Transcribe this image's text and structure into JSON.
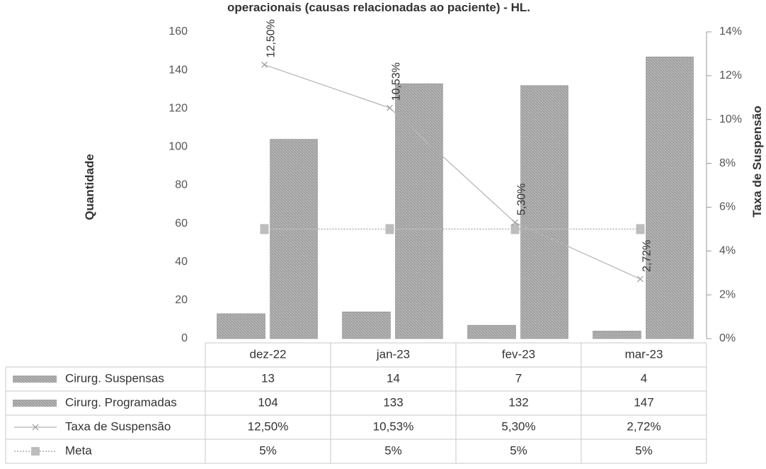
{
  "chart_data": {
    "type": "bar",
    "title": "operacionais (causas relacionadas ao paciente) - HL.",
    "categories": [
      "dez-22",
      "jan-23",
      "fev-23",
      "mar-23"
    ],
    "ylabel": "Quantidade",
    "y2label": "Taxa de Suspensão",
    "ylim": [
      0,
      160
    ],
    "y2lim": [
      0,
      14
    ],
    "yticks": [
      "0",
      "20",
      "40",
      "60",
      "80",
      "100",
      "120",
      "140",
      "160"
    ],
    "y2ticks": [
      "0%",
      "2%",
      "4%",
      "6%",
      "8%",
      "10%",
      "12%",
      "14%"
    ],
    "grid": false,
    "series": [
      {
        "name": "Cirurg. Suspensas",
        "kind": "bar",
        "axis": "left",
        "values": [
          13,
          14,
          7,
          4
        ],
        "table": [
          "13",
          "14",
          "7",
          "4"
        ],
        "color": "#a9a9a9"
      },
      {
        "name": "Cirurg. Programadas",
        "kind": "bar",
        "axis": "left",
        "values": [
          104,
          133,
          132,
          147
        ],
        "table": [
          "104",
          "133",
          "132",
          "147"
        ],
        "color": "#a9a9a9"
      },
      {
        "name": "Taxa de Suspensão",
        "kind": "line",
        "axis": "right",
        "values": [
          12.5,
          10.53,
          5.3,
          2.72
        ],
        "table": [
          "12,50%",
          "10,53%",
          "5,30%",
          "2,72%"
        ],
        "labels": [
          "12,50%",
          "10,53%",
          "5,30%",
          "2,72%"
        ],
        "color": "#b3b3b3"
      },
      {
        "name": "Meta",
        "kind": "line",
        "axis": "right",
        "values": [
          5,
          5,
          5,
          5
        ],
        "table": [
          "5%",
          "5%",
          "5%",
          "5%"
        ],
        "color": "#c0c0c0"
      }
    ],
    "legend": "data table"
  }
}
